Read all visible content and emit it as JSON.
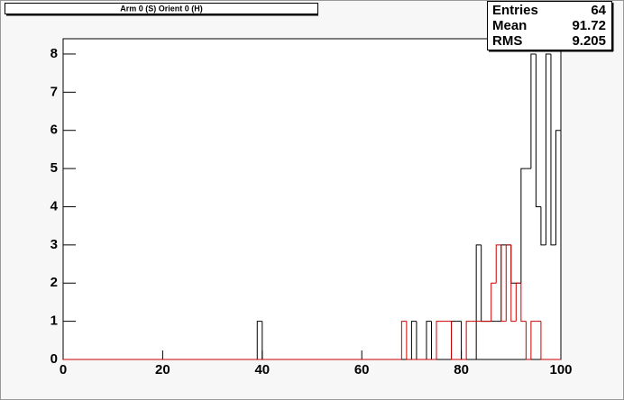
{
  "chart_data": {
    "type": "histogram",
    "title": "Arm 0 (S) Orient 0 (H)",
    "bins": [
      0,
      1,
      2,
      3,
      4,
      5,
      6,
      7,
      8,
      9,
      10,
      11,
      12,
      13,
      14,
      15,
      16,
      17,
      18,
      19,
      20,
      21,
      22,
      23,
      24,
      25,
      26,
      27,
      28,
      29,
      30,
      31,
      32,
      33,
      34,
      35,
      36,
      37,
      38,
      39,
      40,
      41,
      42,
      43,
      44,
      45,
      46,
      47,
      48,
      49,
      50,
      51,
      52,
      53,
      54,
      55,
      56,
      57,
      58,
      59,
      60,
      61,
      62,
      63,
      64,
      65,
      66,
      67,
      68,
      69,
      70,
      71,
      72,
      73,
      74,
      75,
      76,
      77,
      78,
      79,
      80,
      81,
      82,
      83,
      84,
      85,
      86,
      87,
      88,
      89,
      90,
      91,
      92,
      93,
      94,
      95,
      96,
      97,
      98,
      99,
      100
    ],
    "series": [
      {
        "color": "#000000",
        "values": [
          0,
          0,
          0,
          0,
          0,
          0,
          0,
          0,
          0,
          0,
          0,
          0,
          0,
          0,
          0,
          0,
          0,
          0,
          0,
          0,
          0,
          0,
          0,
          0,
          0,
          0,
          0,
          0,
          0,
          0,
          0,
          0,
          0,
          0,
          0,
          0,
          0,
          0,
          0,
          1,
          0,
          0,
          0,
          0,
          0,
          0,
          0,
          0,
          0,
          0,
          0,
          0,
          0,
          0,
          0,
          0,
          0,
          0,
          0,
          0,
          0,
          0,
          0,
          0,
          0,
          0,
          0,
          0,
          0,
          0,
          1,
          0,
          0,
          1,
          0,
          0,
          0,
          0,
          1,
          1,
          0,
          0,
          0,
          3,
          1,
          1,
          1,
          1,
          3,
          3,
          2,
          2,
          5,
          5,
          8,
          4,
          3,
          8,
          3,
          6
        ]
      },
      {
        "color": "#cc0000",
        "values": [
          0,
          0,
          0,
          0,
          0,
          0,
          0,
          0,
          0,
          0,
          0,
          0,
          0,
          0,
          0,
          0,
          0,
          0,
          0,
          0,
          0,
          0,
          0,
          0,
          0,
          0,
          0,
          0,
          0,
          0,
          0,
          0,
          0,
          0,
          0,
          0,
          0,
          0,
          0,
          0,
          0,
          0,
          0,
          0,
          0,
          0,
          0,
          0,
          0,
          0,
          0,
          0,
          0,
          0,
          0,
          0,
          0,
          0,
          0,
          0,
          0,
          0,
          0,
          0,
          0,
          0,
          0,
          0,
          1,
          0,
          0,
          0,
          0,
          0,
          0,
          1,
          1,
          1,
          0,
          0,
          0,
          1,
          1,
          1,
          1,
          1,
          2,
          3,
          1,
          3,
          1,
          2,
          1,
          0,
          1,
          1,
          0,
          0,
          0,
          0
        ]
      }
    ],
    "xlim": [
      0,
      100
    ],
    "xticks": [
      0,
      20,
      40,
      60,
      80,
      100
    ],
    "ylim": [
      0,
      8.4
    ],
    "yticks": [
      0,
      1,
      2,
      3,
      4,
      5,
      6,
      7,
      8
    ],
    "stats": [
      {
        "label": "Entries",
        "value": 64
      },
      {
        "label": "Mean",
        "value": 91.72
      },
      {
        "label": "RMS",
        "value": 9.205
      }
    ]
  }
}
